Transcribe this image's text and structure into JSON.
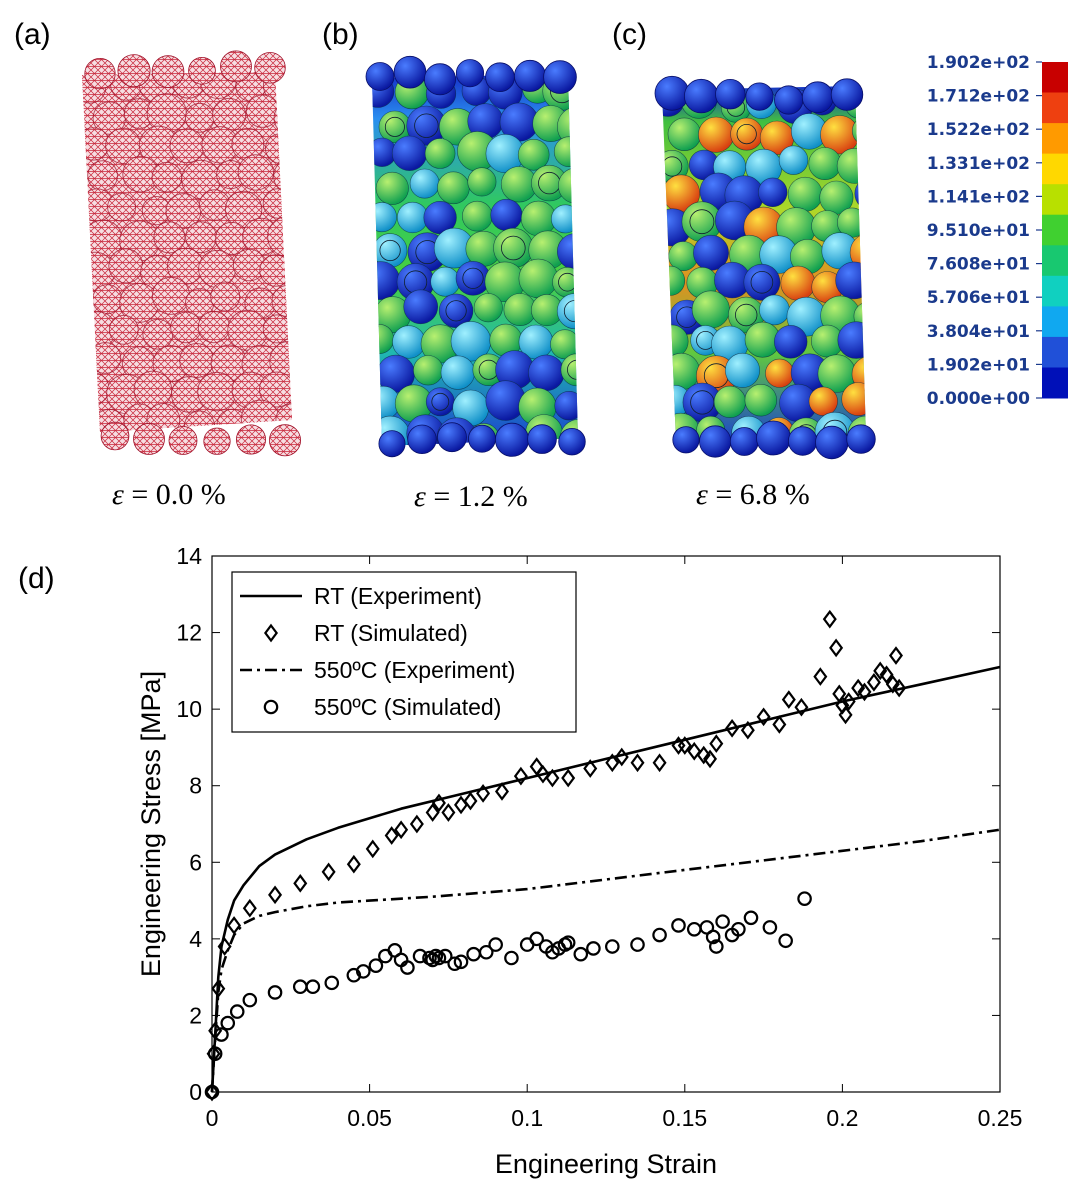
{
  "figure": {
    "panels": [
      {
        "label": "(a)",
        "strain_symbol": "ε",
        "strain_text": "= 0.0 %",
        "mesh_color": "#c8283c"
      },
      {
        "label": "(b)",
        "strain_symbol": "ε",
        "strain_text": "= 1.2 %"
      },
      {
        "label": "(c)",
        "strain_symbol": "ε",
        "strain_text": "= 6.8 %"
      }
    ],
    "colorbar": {
      "labels": [
        "1.902e+02",
        "1.712e+02",
        "1.522e+02",
        "1.331e+02",
        "1.141e+02",
        "9.510e+01",
        "7.608e+01",
        "5.706e+01",
        "3.804e+01",
        "1.902e+01",
        "0.000e+00"
      ],
      "colors": [
        "#c80000",
        "#ee4010",
        "#ff9a00",
        "#ffd800",
        "#b8e000",
        "#40d030",
        "#18c870",
        "#10d0c0",
        "#10a8f0",
        "#2050d8",
        "#0010b8"
      ],
      "label_color": "#1a3a8c"
    },
    "panel_d_label": "(d)"
  },
  "chart_data": {
    "type": "line",
    "xlabel": "Engineering Strain",
    "ylabel": "Engineering Stress [MPa]",
    "xlim": [
      0,
      0.25
    ],
    "ylim": [
      0,
      14
    ],
    "xticks": [
      0,
      0.05,
      0.1,
      0.15,
      0.2,
      0.25
    ],
    "xtick_labels": [
      "0",
      "0.05",
      "0.1",
      "0.15",
      "0.2",
      "0.25"
    ],
    "yticks": [
      0,
      2,
      4,
      6,
      8,
      10,
      12,
      14
    ],
    "ytick_labels": [
      "0",
      "2",
      "4",
      "6",
      "8",
      "10",
      "12",
      "14"
    ],
    "legend_position": "top-left",
    "series": [
      {
        "name": "RT (Experiment)",
        "style": "solid-line",
        "x": [
          0,
          0.001,
          0.002,
          0.003,
          0.005,
          0.007,
          0.01,
          0.015,
          0.02,
          0.03,
          0.04,
          0.05,
          0.06,
          0.08,
          0.1,
          0.125,
          0.15,
          0.175,
          0.2,
          0.225,
          0.25
        ],
        "y": [
          0,
          1.5,
          3.0,
          3.8,
          4.5,
          5.0,
          5.4,
          5.9,
          6.2,
          6.6,
          6.9,
          7.15,
          7.4,
          7.8,
          8.2,
          8.7,
          9.2,
          9.7,
          10.2,
          10.65,
          11.1
        ]
      },
      {
        "name": "RT (Simulated)",
        "style": "diamond",
        "x": [
          0,
          0.0005,
          0.001,
          0.002,
          0.004,
          0.007,
          0.012,
          0.02,
          0.028,
          0.037,
          0.045,
          0.051,
          0.057,
          0.06,
          0.065,
          0.07,
          0.072,
          0.075,
          0.079,
          0.082,
          0.086,
          0.092,
          0.098,
          0.103,
          0.105,
          0.108,
          0.113,
          0.12,
          0.127,
          0.13,
          0.135,
          0.142,
          0.148,
          0.15,
          0.153,
          0.156,
          0.158,
          0.16,
          0.165,
          0.17,
          0.175,
          0.18,
          0.183,
          0.187,
          0.193,
          0.196,
          0.198,
          0.199,
          0.2,
          0.201,
          0.202,
          0.205,
          0.207,
          0.21,
          0.212,
          0.214,
          0.216,
          0.217,
          0.218
        ],
        "y": [
          0,
          1.0,
          1.6,
          2.7,
          3.8,
          4.35,
          4.8,
          5.15,
          5.45,
          5.75,
          5.95,
          6.35,
          6.7,
          6.85,
          7.0,
          7.3,
          7.55,
          7.3,
          7.5,
          7.6,
          7.8,
          7.85,
          8.25,
          8.5,
          8.3,
          8.2,
          8.2,
          8.45,
          8.6,
          8.75,
          8.6,
          8.6,
          9.05,
          9.05,
          8.9,
          8.8,
          8.7,
          9.1,
          9.5,
          9.45,
          9.8,
          9.6,
          10.25,
          10.05,
          10.85,
          12.35,
          11.6,
          10.4,
          10.1,
          9.85,
          10.2,
          10.55,
          10.45,
          10.7,
          11.0,
          10.9,
          10.65,
          11.4,
          10.55
        ]
      },
      {
        "name": "550ºC (Experiment)",
        "style": "dash-dot-line",
        "x": [
          0,
          0.001,
          0.002,
          0.003,
          0.005,
          0.007,
          0.01,
          0.015,
          0.02,
          0.03,
          0.04,
          0.05,
          0.07,
          0.1,
          0.125,
          0.15,
          0.175,
          0.2,
          0.225,
          0.25
        ],
        "y": [
          0,
          1.4,
          2.6,
          3.2,
          3.7,
          4.1,
          4.4,
          4.6,
          4.7,
          4.85,
          4.95,
          5.0,
          5.1,
          5.3,
          5.55,
          5.8,
          6.05,
          6.3,
          6.55,
          6.85
        ]
      },
      {
        "name": "550ºC (Simulated)",
        "style": "circle",
        "x": [
          0,
          0.001,
          0.003,
          0.005,
          0.008,
          0.012,
          0.02,
          0.028,
          0.032,
          0.038,
          0.045,
          0.048,
          0.052,
          0.055,
          0.058,
          0.06,
          0.062,
          0.066,
          0.069,
          0.07,
          0.071,
          0.072,
          0.074,
          0.077,
          0.079,
          0.083,
          0.087,
          0.09,
          0.095,
          0.1,
          0.103,
          0.106,
          0.108,
          0.11,
          0.112,
          0.113,
          0.117,
          0.121,
          0.127,
          0.135,
          0.142,
          0.148,
          0.153,
          0.157,
          0.159,
          0.16,
          0.162,
          0.165,
          0.167,
          0.171,
          0.177,
          0.182,
          0.188
        ],
        "y": [
          0,
          1.0,
          1.5,
          1.8,
          2.1,
          2.4,
          2.6,
          2.75,
          2.75,
          2.85,
          3.05,
          3.15,
          3.3,
          3.55,
          3.7,
          3.45,
          3.25,
          3.55,
          3.5,
          3.45,
          3.55,
          3.5,
          3.55,
          3.35,
          3.4,
          3.6,
          3.65,
          3.85,
          3.5,
          3.85,
          4.0,
          3.8,
          3.65,
          3.75,
          3.85,
          3.9,
          3.6,
          3.75,
          3.8,
          3.85,
          4.1,
          4.35,
          4.25,
          4.3,
          4.05,
          3.8,
          4.45,
          4.1,
          4.25,
          4.55,
          4.3,
          3.95,
          5.05
        ]
      }
    ]
  }
}
